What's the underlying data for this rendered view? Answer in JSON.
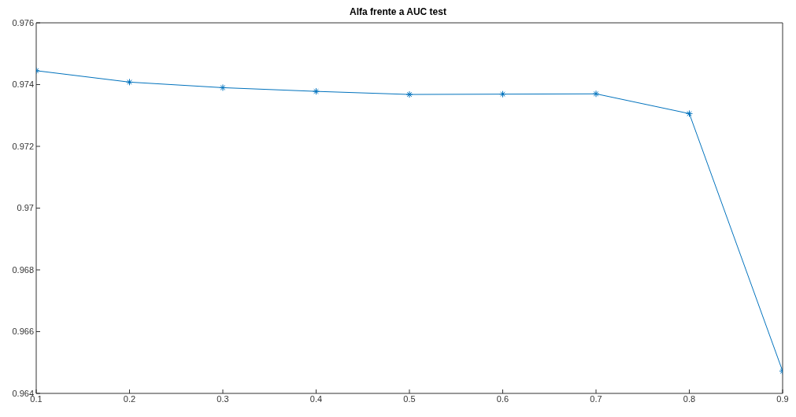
{
  "chart_data": {
    "type": "line",
    "title": "Alfa frente a AUC test",
    "x": [
      0.1,
      0.2,
      0.3,
      0.4,
      0.5,
      0.6,
      0.7,
      0.8,
      0.9
    ],
    "series": [
      {
        "color": "#0072bd",
        "values": [
          0.97445,
          0.97408,
          0.9739,
          0.97378,
          0.97368,
          0.97369,
          0.9737,
          0.97306,
          0.96472
        ]
      }
    ],
    "xlim": [
      0.1,
      0.9
    ],
    "xticks": [
      0.1,
      0.2,
      0.3,
      0.4,
      0.5,
      0.6,
      0.7,
      0.8,
      0.9
    ],
    "ylim": [
      0.964,
      0.976
    ],
    "yticks": [
      0.964,
      0.966,
      0.968,
      0.97,
      0.972,
      0.974,
      0.976
    ],
    "grid": false,
    "legend": false,
    "marker": "cross",
    "line_style": "solid"
  }
}
